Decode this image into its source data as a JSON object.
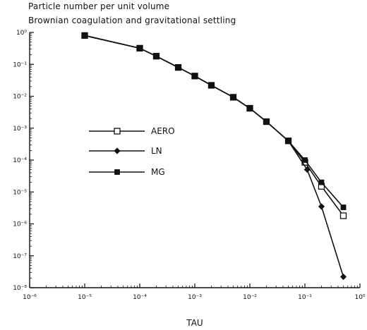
{
  "chart_data": {
    "type": "line",
    "title": "Particle number per unit volume",
    "subtitle": "Brownian coagulation and gravitational settling",
    "xlabel": "TAU",
    "ylabel": "",
    "x_scale": "log",
    "y_scale": "log",
    "xlim": [
      1e-06,
      1
    ],
    "ylim": [
      1e-08,
      1
    ],
    "grid": false,
    "legend_position": "center-left",
    "x_tick_labels": [
      "10⁻⁶",
      "10⁻⁵",
      "10⁻⁴",
      "10⁻³",
      "10⁻²",
      "10⁻¹",
      "10⁰"
    ],
    "y_tick_labels": [
      "10⁻⁸",
      "10⁻⁷",
      "10⁻⁶",
      "10⁻⁵",
      "10⁻⁴",
      "10⁻³",
      "10⁻²",
      "10⁻¹",
      "10⁰"
    ],
    "series": [
      {
        "name": "AERO",
        "marker": "open-square",
        "x": [
          1e-05,
          0.0001,
          0.0002,
          0.0005,
          0.001,
          0.002,
          0.005,
          0.01,
          0.02,
          0.05,
          0.1,
          0.2,
          0.5
        ],
        "y": [
          0.8,
          0.32,
          0.18,
          0.08,
          0.043,
          0.022,
          0.0093,
          0.0042,
          0.0016,
          0.0004,
          8.5e-05,
          1.5e-05,
          1.8e-06
        ]
      },
      {
        "name": "LN",
        "marker": "filled-diamond",
        "x": [
          1e-05,
          0.0001,
          0.0002,
          0.0005,
          0.001,
          0.002,
          0.005,
          0.01,
          0.02,
          0.05,
          0.11,
          0.2,
          0.5
        ],
        "y": [
          0.8,
          0.32,
          0.18,
          0.08,
          0.043,
          0.022,
          0.0093,
          0.0042,
          0.0016,
          0.0004,
          5e-05,
          3.5e-06,
          2.2e-08
        ]
      },
      {
        "name": "MG",
        "marker": "filled-square",
        "x": [
          1e-05,
          0.0001,
          0.0002,
          0.0005,
          0.001,
          0.002,
          0.005,
          0.01,
          0.02,
          0.05,
          0.1,
          0.2,
          0.5
        ],
        "y": [
          0.8,
          0.32,
          0.18,
          0.08,
          0.043,
          0.022,
          0.0093,
          0.0042,
          0.0016,
          0.0004,
          0.0001,
          2e-05,
          3.3e-06
        ]
      }
    ]
  }
}
